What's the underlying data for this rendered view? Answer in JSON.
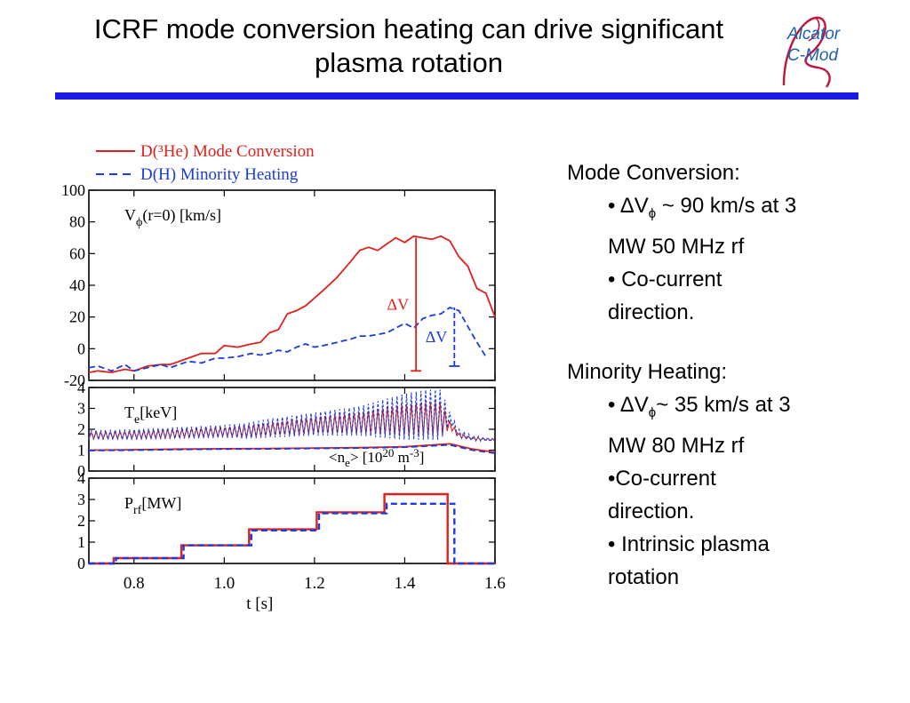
{
  "slide": {
    "title_line1": "ICRF mode conversion heating can drive significant",
    "title_line2": "plasma rotation",
    "logo_line1": "Alcator",
    "logo_line2": "C-Mod",
    "rule_color": "#1a1ae0",
    "logo_color": "#c0143c"
  },
  "notes": {
    "mc_head": "Mode Conversion:",
    "mc_item1_pre": "• ΔV",
    "mc_item1_sub": "ϕ",
    "mc_item1_post": " ~ 90 km/s at 3",
    "mc_item1_cont": "MW 50 MHz rf",
    "mc_item2": "• Co-current",
    "mc_item2_cont": "direction.",
    "mh_head": "Minority Heating:",
    "mh_item1_pre": "• ΔV",
    "mh_item1_sub": "ϕ",
    "mh_item1_post": "~ 35 km/s at 3",
    "mh_item1_cont": "MW 80 MHz rf",
    "mh_item2": "•Co-current",
    "mh_item2_cont": "direction.",
    "mh_item3": "• Intrinsic plasma",
    "mh_item3_cont": "rotation"
  },
  "chart_data": {
    "type": "line",
    "xlabel": "t [s]",
    "xlim": [
      0.7,
      1.6
    ],
    "x_ticks": [
      "0.8",
      "1.0",
      "1.2",
      "1.4",
      "1.6"
    ],
    "x_tick_values": [
      0.8,
      1.0,
      1.2,
      1.4,
      1.6
    ],
    "legend_placement": "top-left, above plots",
    "legend": [
      {
        "text": "D(³He) Mode Conversion",
        "color": "#e0201c",
        "style": "solid"
      },
      {
        "text": "D(H) Minority Heating",
        "color": "#1a3ce0",
        "style": "dashed"
      }
    ],
    "panels": [
      {
        "id": "velocity",
        "label": "V",
        "label_sub": "ϕ",
        "label_rest": "(r=0) [km/s]",
        "ylim": [
          -20,
          100
        ],
        "y_ticks": [
          "100",
          "80",
          "60",
          "40",
          "20",
          "0",
          "-20"
        ],
        "y_tick_values": [
          100,
          80,
          60,
          40,
          20,
          0,
          -20
        ],
        "series": [
          {
            "color": "#e0201c",
            "style": "solid",
            "x": [
              0.7,
              0.72,
              0.75,
              0.78,
              0.8,
              0.83,
              0.86,
              0.88,
              0.9,
              0.92,
              0.95,
              0.98,
              1.0,
              1.03,
              1.06,
              1.08,
              1.1,
              1.12,
              1.14,
              1.16,
              1.18,
              1.2,
              1.22,
              1.25,
              1.28,
              1.3,
              1.32,
              1.34,
              1.36,
              1.38,
              1.4,
              1.42,
              1.44,
              1.46,
              1.48,
              1.5,
              1.52,
              1.54,
              1.56,
              1.58,
              1.6
            ],
            "y": [
              -15,
              -14,
              -15,
              -13,
              -14,
              -11,
              -10,
              -10,
              -8,
              -6,
              -3,
              -3,
              2,
              1,
              3,
              4,
              10,
              12,
              22,
              24,
              27,
              32,
              37,
              45,
              55,
              62,
              64,
              62,
              66,
              70,
              67,
              71,
              70,
              69,
              71,
              68,
              58,
              52,
              38,
              35,
              20
            ]
          },
          {
            "color": "#1a3ce0",
            "style": "dashed",
            "x": [
              0.7,
              0.72,
              0.75,
              0.78,
              0.8,
              0.83,
              0.86,
              0.88,
              0.9,
              0.92,
              0.95,
              0.98,
              1.0,
              1.03,
              1.06,
              1.08,
              1.1,
              1.12,
              1.14,
              1.16,
              1.18,
              1.2,
              1.22,
              1.25,
              1.28,
              1.3,
              1.32,
              1.34,
              1.36,
              1.38,
              1.4,
              1.42,
              1.44,
              1.46,
              1.48,
              1.5,
              1.52,
              1.54,
              1.56,
              1.58
            ],
            "y": [
              -12,
              -11,
              -14,
              -10,
              -14,
              -12,
              -10,
              -12,
              -10,
              -8,
              -9,
              -6,
              -6,
              -5,
              -3,
              -4,
              -3,
              -1,
              -2,
              1,
              3,
              1,
              2,
              4,
              6,
              8,
              8,
              9,
              10,
              13,
              16,
              13,
              19,
              21,
              22,
              26,
              24,
              14,
              4,
              -5
            ]
          }
        ],
        "annotations": [
          {
            "text": "ΔV",
            "color": "#e0201c",
            "x": 1.425,
            "from": -14,
            "to": 70
          },
          {
            "text": "ΔV",
            "color": "#1a3ce0",
            "x": 1.51,
            "from": -11,
            "to": 26
          }
        ]
      },
      {
        "id": "temperature",
        "label": "T",
        "label_sub": "e",
        "label_rest": "[keV]",
        "label2": "<n",
        "label2_sub": "e",
        "label2_rest": "> [10",
        "label2_sup": "20",
        "label2_unit": " m",
        "label2_sup2": "-3",
        "label2_end": "]",
        "ylim": [
          0,
          4
        ],
        "y_ticks": [
          "4",
          "3",
          "2",
          "1",
          "0"
        ],
        "y_tick_values": [
          4,
          3,
          2,
          1,
          0
        ],
        "series": [
          {
            "color": "#e0201c",
            "style": "solid",
            "name_hint": "Te MC",
            "x": [
              0.7,
              0.8,
              0.9,
              1.0,
              1.05,
              1.1,
              1.2,
              1.3,
              1.35,
              1.4,
              1.45,
              1.48,
              1.5,
              1.52,
              1.55,
              1.6
            ],
            "y_low": [
              1.55,
              1.55,
              1.6,
              1.65,
              1.6,
              1.7,
              1.8,
              1.8,
              1.75,
              1.7,
              1.7,
              1.7,
              2.0,
              1.6,
              1.5,
              1.45
            ],
            "y_high": [
              1.85,
              1.9,
              2.0,
              2.1,
              2.2,
              2.3,
              2.6,
              2.8,
              3.0,
              3.2,
              3.3,
              3.3,
              2.4,
              1.8,
              1.6,
              1.55
            ]
          },
          {
            "color": "#1a3ce0",
            "style": "dashed",
            "name_hint": "Te MH",
            "x": [
              0.7,
              0.8,
              0.9,
              1.0,
              1.05,
              1.1,
              1.2,
              1.3,
              1.35,
              1.4,
              1.45,
              1.48,
              1.5,
              1.52,
              1.55,
              1.6
            ],
            "y_low": [
              1.5,
              1.5,
              1.55,
              1.6,
              1.55,
              1.6,
              1.7,
              1.7,
              1.6,
              1.5,
              1.5,
              1.5,
              2.3,
              1.6,
              1.45,
              1.4
            ],
            "y_high": [
              1.95,
              2.0,
              2.1,
              2.2,
              2.3,
              2.5,
              2.8,
              3.1,
              3.4,
              3.7,
              3.9,
              3.9,
              2.8,
              2.0,
              1.7,
              1.55
            ]
          },
          {
            "color": "#e0201c",
            "style": "solid",
            "name_hint": "ne MC",
            "x": [
              0.7,
              0.8,
              0.9,
              1.0,
              1.1,
              1.2,
              1.3,
              1.4,
              1.5,
              1.55,
              1.6
            ],
            "y": [
              1.0,
              1.02,
              1.05,
              1.07,
              1.08,
              1.1,
              1.12,
              1.16,
              1.3,
              1.05,
              0.9
            ]
          },
          {
            "color": "#1a3ce0",
            "style": "dashed",
            "name_hint": "ne MH",
            "x": [
              0.7,
              0.8,
              0.9,
              1.0,
              1.1,
              1.2,
              1.3,
              1.4,
              1.5,
              1.55,
              1.6
            ],
            "y": [
              0.98,
              1.0,
              1.03,
              1.05,
              1.06,
              1.08,
              1.1,
              1.14,
              1.25,
              1.0,
              0.85
            ]
          }
        ]
      },
      {
        "id": "power",
        "label": "P",
        "label_sub": "rf",
        "label_rest": "[MW]",
        "ylim": [
          0,
          4
        ],
        "y_ticks": [
          "4",
          "3",
          "2",
          "1",
          "0"
        ],
        "y_tick_values": [
          4,
          3,
          2,
          1,
          0
        ],
        "series": [
          {
            "color": "#e0201c",
            "style": "solid",
            "x": [
              0.7,
              0.755,
              0.755,
              0.905,
              0.905,
              1.055,
              1.055,
              1.205,
              1.205,
              1.355,
              1.355,
              1.495,
              1.495,
              1.6
            ],
            "y": [
              0,
              0,
              0.25,
              0.25,
              0.85,
              0.85,
              1.6,
              1.6,
              2.4,
              2.4,
              3.25,
              3.25,
              0,
              0
            ]
          },
          {
            "color": "#1a3ce0",
            "style": "dashed",
            "x": [
              0.7,
              0.76,
              0.76,
              0.91,
              0.91,
              1.06,
              1.06,
              1.21,
              1.21,
              1.36,
              1.36,
              1.51,
              1.51,
              1.6
            ],
            "y": [
              0,
              0,
              0.25,
              0.25,
              0.85,
              0.85,
              1.55,
              1.55,
              2.35,
              2.35,
              2.8,
              2.8,
              0,
              0
            ]
          }
        ]
      }
    ]
  }
}
